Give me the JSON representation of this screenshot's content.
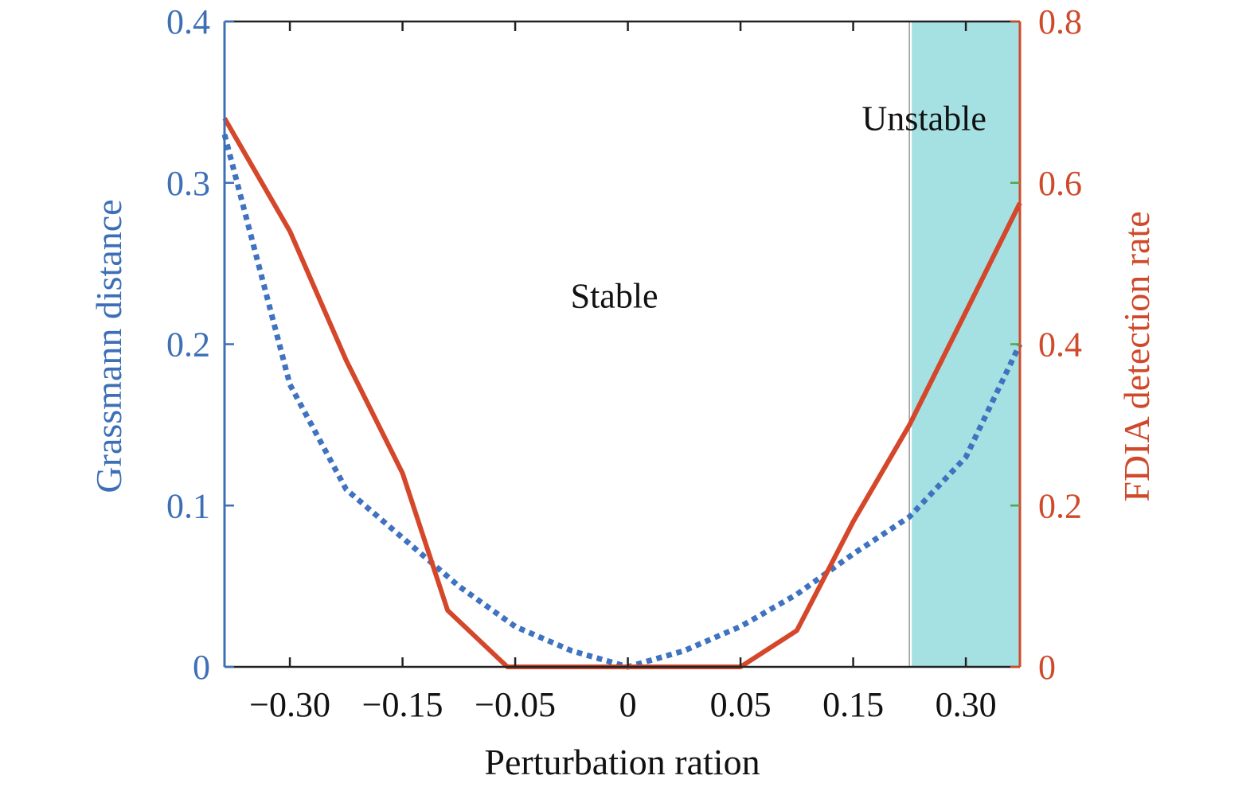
{
  "chart_data": {
    "type": "line",
    "xlabel": "Perturbation ration",
    "ylabel_left": "Grassmann distance",
    "ylabel_right": "FDIA detection rate",
    "x_tick_labels": [
      "−0.30",
      "−0.15",
      "−0.05",
      "0",
      "0.05",
      "0.15",
      "0.30"
    ],
    "x_tick_positions": [
      -3,
      -2,
      -1,
      0,
      1,
      2,
      3
    ],
    "xlim": [
      -3.58,
      3.48
    ],
    "ylim_left": [
      0,
      0.4
    ],
    "yticks_left": [
      "0",
      "0.1",
      "0.2",
      "0.3",
      "0.4"
    ],
    "ylim_right": [
      0,
      0.8
    ],
    "yticks_right": [
      "0",
      "0.2",
      "0.4",
      "0.6",
      "0.8"
    ],
    "shaded_region": {
      "x_from": 2.52,
      "x_to": 3.48,
      "color": "#a5e0e3",
      "label": "Unstable"
    },
    "annotations": [
      {
        "text": "Stable",
        "x": -0.12,
        "y_left": 0.23
      },
      {
        "text": "Unstable",
        "x": 2.63,
        "y_left": 0.34
      }
    ],
    "series": [
      {
        "axis": "left",
        "style": "dotted",
        "color": "#3f72bf",
        "x": [
          -3.58,
          -3.0,
          -2.5,
          -2.0,
          -1.5,
          -1.0,
          -0.5,
          0.0,
          0.5,
          1.0,
          1.5,
          2.0,
          2.5,
          3.0,
          3.48
        ],
        "y": [
          0.33,
          0.175,
          0.11,
          0.08,
          0.05,
          0.025,
          0.01,
          0.0,
          0.01,
          0.025,
          0.045,
          0.07,
          0.093,
          0.13,
          0.2
        ]
      },
      {
        "axis": "right",
        "style": "solid",
        "color": "#d4472a",
        "x": [
          -3.58,
          -3.0,
          -2.5,
          -2.0,
          -1.6,
          -1.07,
          -0.5,
          0.0,
          0.5,
          1.0,
          1.5,
          2.0,
          2.5,
          3.0,
          3.48
        ],
        "y": [
          0.68,
          0.54,
          0.38,
          0.24,
          0.07,
          0.0,
          0.0,
          0.0,
          0.0,
          0.0,
          0.045,
          0.18,
          0.3,
          0.44,
          0.575
        ]
      }
    ],
    "colors": {
      "left_axis": "#3d6fb7",
      "right_axis": "#cf4a2a",
      "frame": "#222222",
      "right_minor_tick": "#5aa050"
    }
  }
}
